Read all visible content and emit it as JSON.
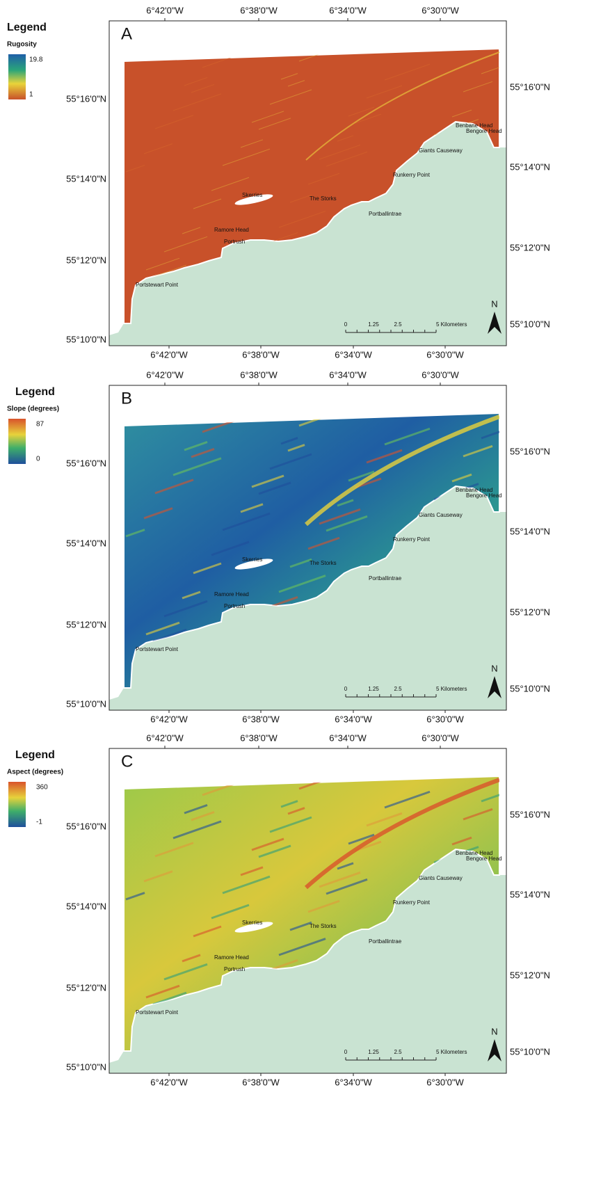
{
  "panels": [
    {
      "label": "A",
      "legend": {
        "title": "Legend",
        "variable": "Rugosity",
        "max": 19.8,
        "min": 1
      },
      "x_labels_top": [
        "6°42'0\"W",
        "6°38'0\"W",
        "6°34'0\"W",
        "6°30'0\"W"
      ],
      "x_labels_bottom": [
        "6°42'0\"W",
        "6°38'0\"W",
        "6°34'0\"W",
        "6°30'0\"W"
      ],
      "y_labels_left": [
        "55°16'0\"N",
        "55°14'0\"N",
        "55°12'0\"N",
        "55°10'0\"N"
      ],
      "y_labels_right": [
        "55°16'0\"N",
        "55°14'0\"N",
        "55°12'0\"N",
        "55°10'0\"N"
      ],
      "places": [
        "Benbane Head",
        "Bengore Head",
        "Giants Causeway",
        "Runkerry Point",
        "The Storks",
        "Skerries",
        "Portballintrae",
        "Ramore Head",
        "Portrush",
        "Portstewart Point"
      ],
      "scale": [
        "0",
        "1.25",
        "2.5",
        "5 Kilometers"
      ],
      "north": "N"
    },
    {
      "label": "B",
      "legend": {
        "title": "Legend",
        "variable": "Slope (degrees)",
        "max": 87,
        "min": 0
      },
      "x_labels_top": [
        "6°42'0\"W",
        "6°38'0\"W",
        "6°34'0\"W",
        "6°30'0\"W"
      ],
      "x_labels_bottom": [
        "6°42'0\"W",
        "6°38'0\"W",
        "6°34'0\"W",
        "6°30'0\"W"
      ],
      "y_labels_left": [
        "55°16'0\"N",
        "55°14'0\"N",
        "55°12'0\"N",
        "55°10'0\"N"
      ],
      "y_labels_right": [
        "55°16'0\"N",
        "55°14'0\"N",
        "55°12'0\"N",
        "55°10'0\"N"
      ],
      "places": [
        "Benbane Head",
        "Bengore Head",
        "Giants Causeway",
        "Runkerry Point",
        "The Storks",
        "Skerries",
        "Portballintrae",
        "Ramore Head",
        "Portrush",
        "Portstewart Point"
      ],
      "scale": [
        "0",
        "1.25",
        "2.5",
        "5 Kilometers"
      ],
      "north": "N"
    },
    {
      "label": "C",
      "legend": {
        "title": "Legend",
        "variable": "Aspect (degrees)",
        "max": 360,
        "min": -1
      },
      "x_labels_top": [
        "6°42'0\"W",
        "6°38'0\"W",
        "6°34'0\"W",
        "6°30'0\"W"
      ],
      "x_labels_bottom": [
        "6°42'0\"W",
        "6°38'0\"W",
        "6°34'0\"W",
        "6°30'0\"W"
      ],
      "y_labels_left": [
        "55°16'0\"N",
        "55°14'0\"N",
        "55°12'0\"N",
        "55°10'0\"N"
      ],
      "y_labels_right": [
        "55°16'0\"N",
        "55°14'0\"N",
        "55°12'0\"N",
        "55°10'0\"N"
      ],
      "places": [
        "Benbane Head",
        "Bengore Head",
        "Giants Causeway",
        "Runkerry Point",
        "The Storks",
        "Skerries",
        "Portballintrae",
        "Ramore Head",
        "Portrush",
        "Portstewart Point"
      ],
      "scale": [
        "0",
        "1.25",
        "2.5",
        "5 Kilometers"
      ],
      "north": "N"
    }
  ]
}
